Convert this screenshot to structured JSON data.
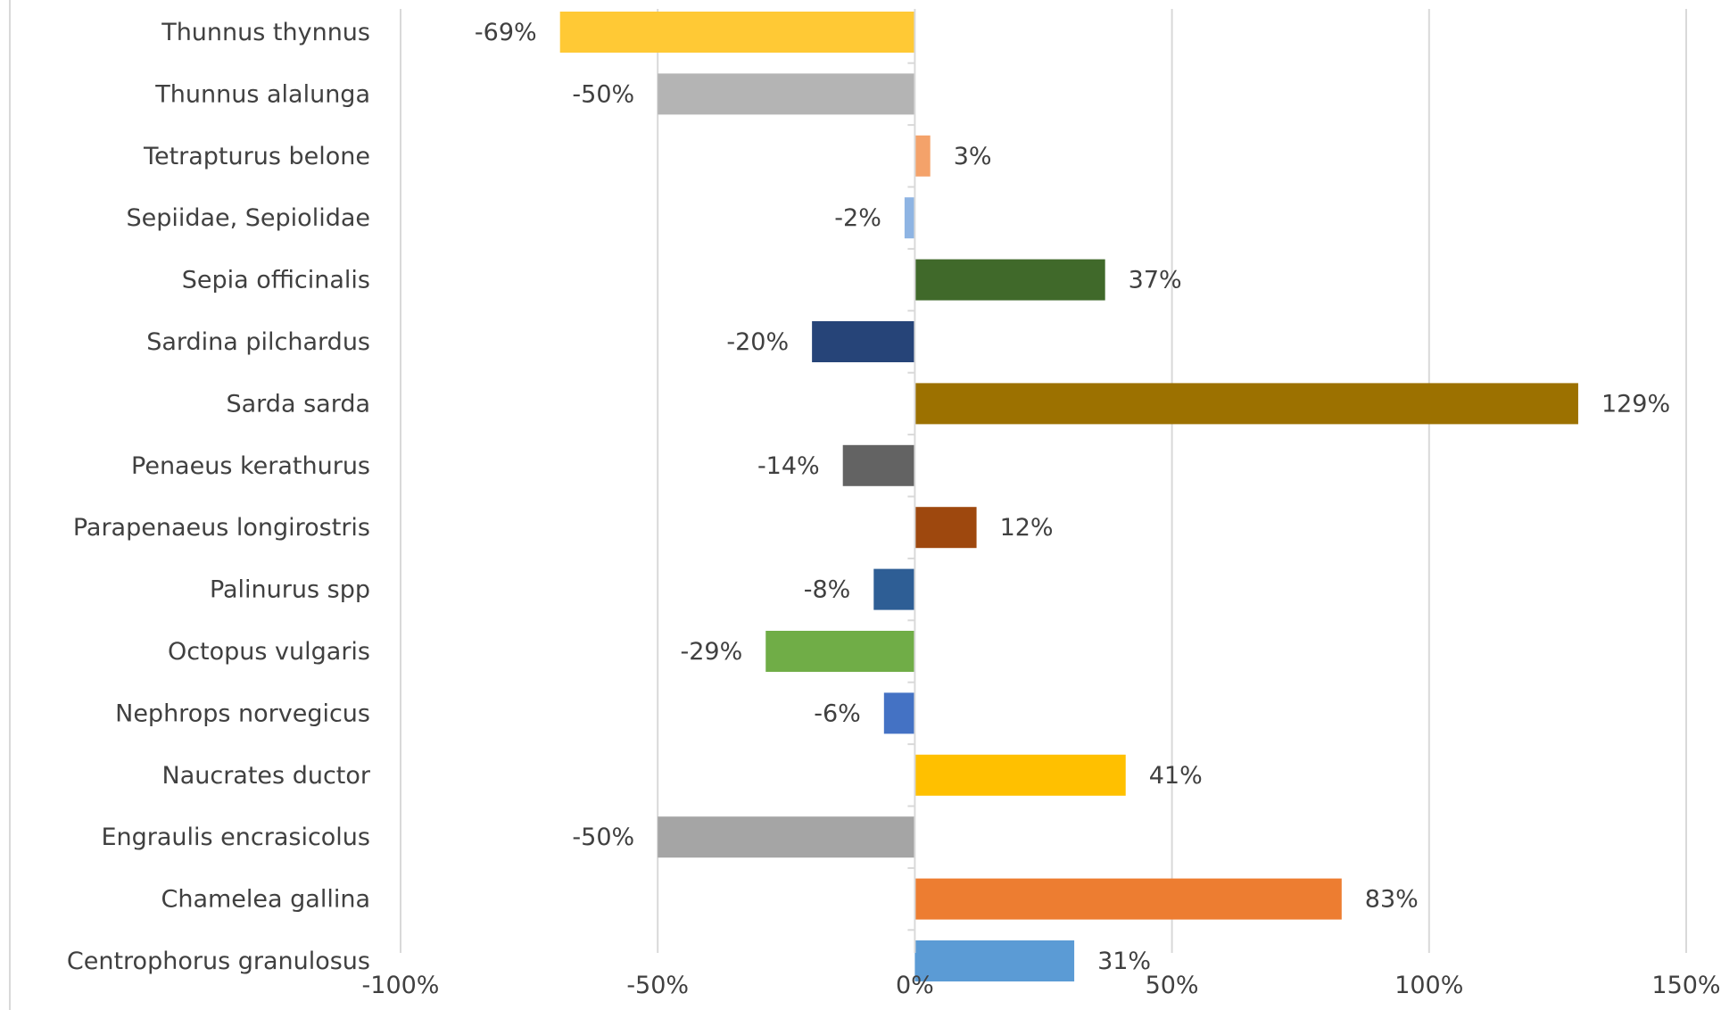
{
  "chart_data": {
    "type": "bar",
    "orientation": "horizontal",
    "title": "",
    "xlabel": "",
    "ylabel": "",
    "categories": [
      "Thunnus thynnus",
      "Thunnus alalunga",
      "Tetrapturus belone",
      "Sepiidae, Sepiolidae",
      "Sepia officinalis",
      "Sardina pilchardus",
      "Sarda sarda",
      "Penaeus kerathurus",
      "Parapenaeus longirostris",
      "Palinurus spp",
      "Octopus vulgaris",
      "Nephrops norvegicus",
      "Naucrates ductor",
      "Engraulis encrasicolus",
      "Chamelea gallina",
      "Centrophorus granulosus"
    ],
    "values": [
      -69,
      -50,
      3,
      -2,
      37,
      -20,
      129,
      -14,
      12,
      -8,
      -29,
      -6,
      41,
      -50,
      83,
      31
    ],
    "data_labels": [
      "-69%",
      "-50%",
      "3%",
      "-2%",
      "37%",
      "-20%",
      "129%",
      "-14%",
      "12%",
      "-8%",
      "-29%",
      "-6%",
      "41%",
      "-50%",
      "83%",
      "31%"
    ],
    "colors": [
      "#FFC935",
      "#B4B4B4",
      "#F4A26A",
      "#8EB4E3",
      "#40692A",
      "#264478",
      "#9C7100",
      "#636363",
      "#9E480E",
      "#2E5E95",
      "#70AD47",
      "#4472C4",
      "#FFC000",
      "#A5A5A5",
      "#ED7D31",
      "#5B9BD5"
    ],
    "xlim": [
      -100,
      150
    ],
    "xticks": [
      -100,
      -50,
      0,
      50,
      100,
      150
    ],
    "xtick_labels": [
      "-100%",
      "-50%",
      "0%",
      "50%",
      "100%",
      "150%"
    ],
    "grid": true,
    "legend": "none"
  }
}
